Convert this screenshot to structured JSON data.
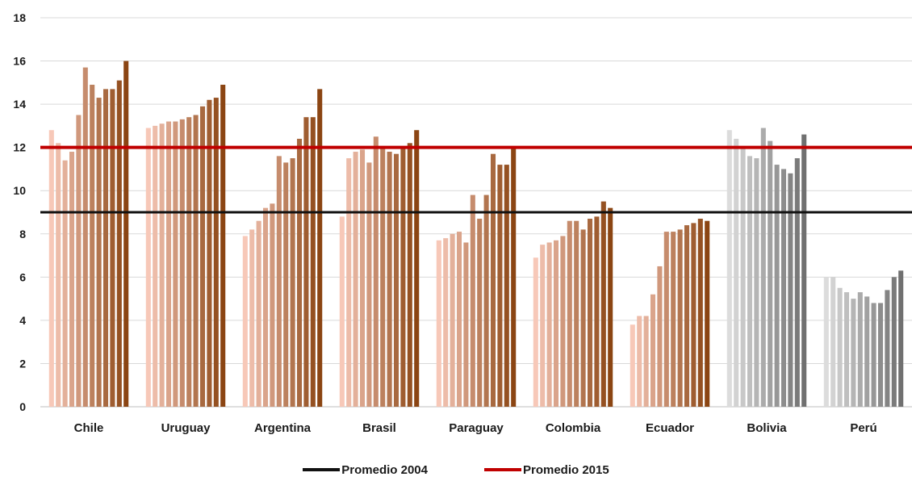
{
  "chart_data": {
    "type": "bar",
    "title": "",
    "xlabel": "",
    "ylabel": "",
    "ylim": [
      0,
      18
    ],
    "yticks": [
      "0",
      "2",
      "4",
      "6",
      "8",
      "10",
      "12",
      "14",
      "16",
      "18"
    ],
    "grid": true,
    "legend_position": "bottom",
    "categories": [
      {
        "name": "Chile",
        "palette": "orange",
        "values": [
          12.8,
          12.2,
          11.4,
          11.8,
          13.5,
          15.7,
          14.9,
          14.3,
          14.7,
          14.7,
          15.1,
          16.0
        ]
      },
      {
        "name": "Uruguay",
        "palette": "orange",
        "values": [
          12.9,
          13.0,
          13.1,
          13.2,
          13.2,
          13.3,
          13.4,
          13.5,
          13.9,
          14.2,
          14.3,
          14.9
        ]
      },
      {
        "name": "Argentina",
        "palette": "orange",
        "values": [
          7.9,
          8.2,
          8.6,
          9.2,
          9.4,
          11.6,
          11.3,
          11.5,
          12.4,
          13.4,
          13.4,
          14.7
        ]
      },
      {
        "name": "Brasil",
        "palette": "orange",
        "values": [
          8.8,
          11.5,
          11.8,
          11.9,
          11.3,
          12.5,
          12.0,
          11.8,
          11.7,
          12.0,
          12.2,
          12.8
        ]
      },
      {
        "name": "Paraguay",
        "palette": "orange",
        "values": [
          7.7,
          7.8,
          8.0,
          8.1,
          7.6,
          9.8,
          8.7,
          9.8,
          11.7,
          11.2,
          11.2,
          12.0
        ]
      },
      {
        "name": "Colombia",
        "palette": "orange",
        "values": [
          6.9,
          7.5,
          7.6,
          7.7,
          7.9,
          8.6,
          8.6,
          8.2,
          8.7,
          8.8,
          9.5,
          9.2
        ]
      },
      {
        "name": "Ecuador",
        "palette": "orange",
        "values": [
          3.8,
          4.2,
          4.2,
          5.2,
          6.5,
          8.1,
          8.1,
          8.2,
          8.4,
          8.5,
          8.7,
          8.6
        ]
      },
      {
        "name": "Bolivia",
        "palette": "gray",
        "values": [
          12.8,
          12.4,
          12.0,
          11.6,
          11.5,
          12.9,
          12.3,
          11.2,
          11.0,
          10.8,
          11.5,
          12.6
        ]
      },
      {
        "name": "Perú",
        "palette": "gray",
        "values": [
          6.0,
          6.0,
          5.5,
          5.3,
          5.0,
          5.3,
          5.1,
          4.8,
          4.8,
          5.4,
          6.0,
          6.3
        ]
      }
    ],
    "reference_lines": [
      {
        "name": "Promedio 2004",
        "value": 9.0,
        "color": "#111111"
      },
      {
        "name": "Promedio 2015",
        "value": 12.0,
        "color": "#c00000"
      }
    ],
    "colors": {
      "orange_light": "#f7c8b8",
      "orange_dark": "#8b4513",
      "gray_light": "#dcdcdc",
      "gray_dark": "#707070",
      "grid": "#d9d9d9",
      "axis": "#bfbfbf"
    }
  }
}
